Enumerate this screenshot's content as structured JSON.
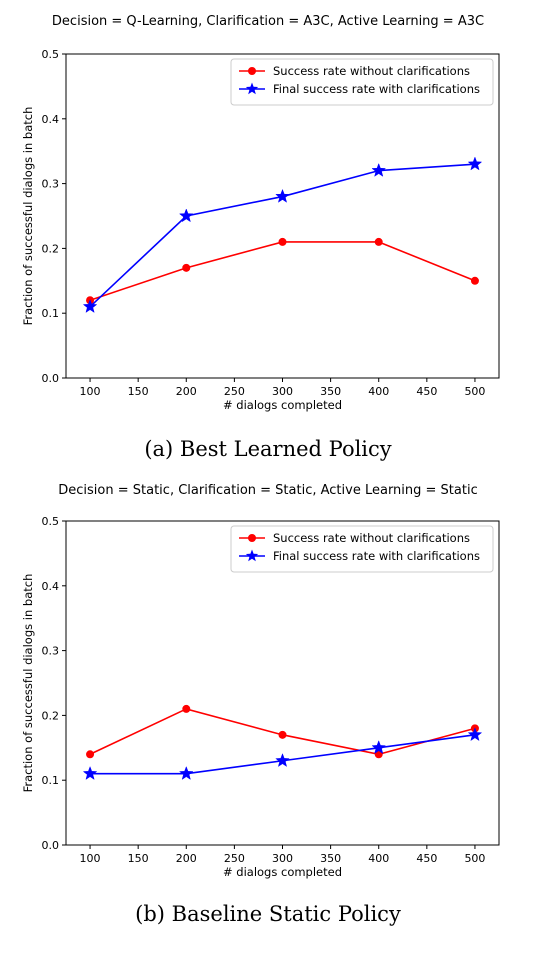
{
  "chart_data": [
    {
      "type": "line",
      "title": "Decision = Q-Learning, Clarification = A3C, Active Learning = A3C",
      "caption": "(a) Best Learned Policy",
      "xlabel": "# dialogs completed",
      "ylabel": "Fraction of successful dialogs in batch",
      "x": [
        100,
        200,
        300,
        400,
        500
      ],
      "xlim": [
        75,
        525
      ],
      "ylim": [
        0.0,
        0.5
      ],
      "xticks": [
        100,
        150,
        200,
        250,
        300,
        350,
        400,
        450,
        500
      ],
      "yticks": [
        0.0,
        0.1,
        0.2,
        0.3,
        0.4,
        0.5
      ],
      "grid": false,
      "legend_position": "top-right",
      "series": [
        {
          "name": "Success rate without clarifications",
          "color": "#ff0000",
          "marker": "circle",
          "values": [
            0.12,
            0.17,
            0.21,
            0.21,
            0.15
          ]
        },
        {
          "name": "Final success rate with clarifications",
          "color": "#0000ff",
          "marker": "star",
          "values": [
            0.11,
            0.25,
            0.28,
            0.32,
            0.33
          ]
        }
      ]
    },
    {
      "type": "line",
      "title": "Decision = Static, Clarification = Static, Active Learning = Static",
      "caption": "(b) Baseline Static Policy",
      "xlabel": "# dialogs completed",
      "ylabel": "Fraction of successful dialogs in batch",
      "x": [
        100,
        200,
        300,
        400,
        500
      ],
      "xlim": [
        75,
        525
      ],
      "ylim": [
        0.0,
        0.5
      ],
      "xticks": [
        100,
        150,
        200,
        250,
        300,
        350,
        400,
        450,
        500
      ],
      "yticks": [
        0.0,
        0.1,
        0.2,
        0.3,
        0.4,
        0.5
      ],
      "grid": false,
      "legend_position": "top-right",
      "series": [
        {
          "name": "Success rate without clarifications",
          "color": "#ff0000",
          "marker": "circle",
          "values": [
            0.14,
            0.21,
            0.17,
            0.14,
            0.18
          ]
        },
        {
          "name": "Final success rate with clarifications",
          "color": "#0000ff",
          "marker": "star",
          "values": [
            0.11,
            0.11,
            0.13,
            0.15,
            0.17
          ]
        }
      ]
    }
  ]
}
